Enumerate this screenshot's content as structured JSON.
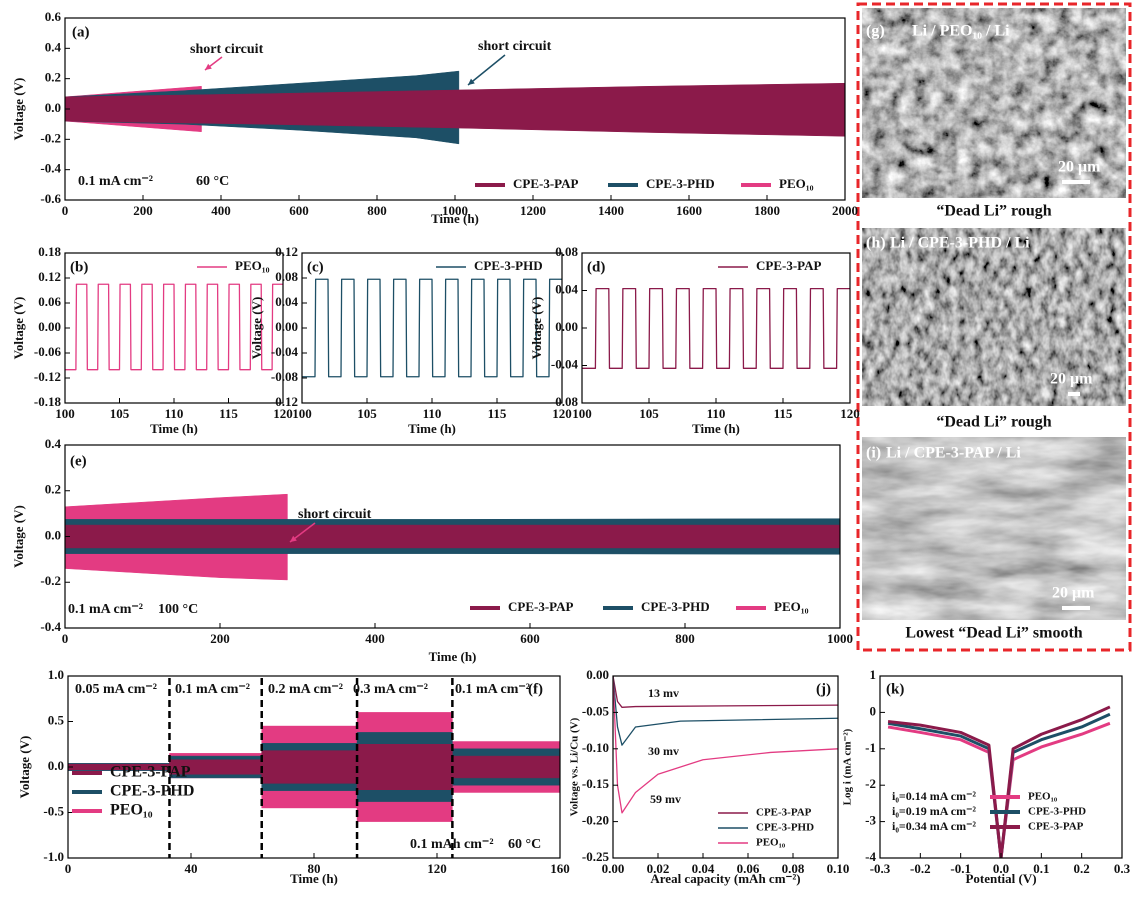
{
  "chart_data": [
    {
      "type": "band",
      "panel": "(a)",
      "xlabel": "Time (h)",
      "ylabel": "Voltage (V)",
      "xlim": [
        0,
        2000
      ],
      "ylim": [
        -0.6,
        0.6
      ],
      "xticks": [
        0,
        200,
        400,
        600,
        800,
        1000,
        1200,
        1400,
        1600,
        1800,
        2000
      ],
      "yticks": [
        -0.6,
        -0.4,
        -0.2,
        {
          "value": 0,
          "label": "0.0"
        },
        0.2,
        0.4,
        0.6
      ],
      "legend": "lower right",
      "series": [
        {
          "name": "CPE-3-PAP",
          "color": "#8b1a4a",
          "x": [
            0,
            500,
            1000,
            1500,
            2000
          ],
          "values": [
            0.08,
            0.1,
            0.125,
            0.15,
            0.17
          ],
          "lower": [
            -0.08,
            -0.1,
            -0.125,
            -0.155,
            -0.18
          ]
        },
        {
          "name": "CPE-3-PHD",
          "color": "#1d4f66",
          "x": [
            0,
            300,
            600,
            900,
            1010
          ],
          "values": [
            0.08,
            0.12,
            0.17,
            0.22,
            0.25
          ],
          "lower": [
            -0.08,
            -0.1,
            -0.14,
            -0.19,
            -0.23
          ]
        },
        {
          "name": "PEO₁₀",
          "color": "#e33b82",
          "x": [
            0,
            100,
            200,
            300,
            350
          ],
          "values": [
            0.08,
            0.1,
            0.12,
            0.14,
            0.15
          ],
          "lower": [
            -0.08,
            -0.1,
            -0.12,
            -0.14,
            -0.15
          ]
        }
      ],
      "annotations": [
        "short circuit",
        "short circuit",
        "0.1 mA cm⁻²",
        "60 °C"
      ]
    },
    {
      "type": "line",
      "panel": "(b)",
      "xlabel": "Time (h)",
      "ylabel": "Voltage (V)",
      "xlim": [
        100,
        120
      ],
      "ylim": [
        -0.18,
        0.18
      ],
      "xticks": [
        100,
        105,
        110,
        115,
        120
      ],
      "yticks": [
        -0.18,
        -0.12,
        -0.06,
        {
          "value": 0,
          "label": "0.00"
        },
        0.06,
        0.12,
        0.18
      ],
      "legend": "upper right",
      "series": [
        {
          "name": "PEO₁₀",
          "color": "#e33b82",
          "x": [
            100,
            101,
            101.05,
            102,
            102.05,
            103,
            103.05,
            104,
            104.05,
            105,
            105.05,
            106,
            106.05,
            107,
            107.05,
            108,
            108.05,
            109,
            109.05,
            110,
            110.05,
            111,
            111.05,
            112,
            112.05,
            113,
            113.05,
            114,
            114.05,
            115,
            115.05,
            116,
            116.05,
            117,
            117.05,
            118,
            118.05,
            119,
            119.05,
            120
          ],
          "values": [
            -0.1,
            -0.1,
            0.105,
            0.105,
            -0.1,
            -0.1,
            0.105,
            0.105,
            -0.1,
            -0.1,
            0.105,
            0.105,
            -0.1,
            -0.1,
            0.105,
            0.105,
            -0.1,
            -0.1,
            0.105,
            0.105,
            -0.1,
            -0.1,
            0.105,
            0.105,
            -0.1,
            -0.1,
            0.105,
            0.105,
            -0.1,
            -0.1,
            0.105,
            0.105,
            -0.1,
            -0.1,
            0.105,
            0.105,
            -0.1,
            -0.1,
            0.105,
            0.105
          ]
        }
      ],
      "annotations": []
    },
    {
      "type": "line",
      "panel": "(c)",
      "xlabel": "Time (h)",
      "ylabel": "Voltage (V)",
      "xlim": [
        100,
        120
      ],
      "ylim": [
        -0.12,
        0.12
      ],
      "xticks": [
        100,
        105,
        110,
        115,
        120
      ],
      "yticks": [
        -0.12,
        -0.08,
        -0.04,
        {
          "value": 0,
          "label": "0.00"
        },
        0.04,
        0.08,
        0.12
      ],
      "legend": "upper right",
      "series": [
        {
          "name": "CPE-3-PHD",
          "color": "#1d4f66",
          "x": [
            100,
            101,
            101.05,
            102,
            102.05,
            103,
            103.05,
            104,
            104.05,
            105,
            105.05,
            106,
            106.05,
            107,
            107.05,
            108,
            108.05,
            109,
            109.05,
            110,
            110.05,
            111,
            111.05,
            112,
            112.05,
            113,
            113.05,
            114,
            114.05,
            115,
            115.05,
            116,
            116.05,
            117,
            117.05,
            118,
            118.05,
            119,
            119.05,
            120
          ],
          "values": [
            -0.078,
            -0.078,
            0.078,
            0.078,
            -0.078,
            -0.078,
            0.078,
            0.078,
            -0.078,
            -0.078,
            0.078,
            0.078,
            -0.078,
            -0.078,
            0.078,
            0.078,
            -0.078,
            -0.078,
            0.078,
            0.078,
            -0.078,
            -0.078,
            0.078,
            0.078,
            -0.078,
            -0.078,
            0.078,
            0.078,
            -0.078,
            -0.078,
            0.078,
            0.078,
            -0.078,
            -0.078,
            0.078,
            0.078,
            -0.078,
            -0.078,
            0.078,
            0.078
          ]
        }
      ],
      "annotations": []
    },
    {
      "type": "line",
      "panel": "(d)",
      "xlabel": "Time (h)",
      "ylabel": "Voltage (V)",
      "xlim": [
        100,
        120
      ],
      "ylim": [
        -0.08,
        0.08
      ],
      "xticks": [
        100,
        105,
        110,
        115,
        120
      ],
      "yticks": [
        -0.08,
        -0.04,
        {
          "value": 0,
          "label": "0.00"
        },
        0.04,
        0.08
      ],
      "legend": "upper right",
      "series": [
        {
          "name": "CPE-3-PAP",
          "color": "#8b1a4a",
          "x": [
            100,
            101,
            101.05,
            102,
            102.05,
            103,
            103.05,
            104,
            104.05,
            105,
            105.05,
            106,
            106.05,
            107,
            107.05,
            108,
            108.05,
            109,
            109.05,
            110,
            110.05,
            111,
            111.05,
            112,
            112.05,
            113,
            113.05,
            114,
            114.05,
            115,
            115.05,
            116,
            116.05,
            117,
            117.05,
            118,
            118.05,
            119,
            119.05,
            120
          ],
          "values": [
            -0.043,
            -0.043,
            0.042,
            0.042,
            -0.043,
            -0.043,
            0.042,
            0.042,
            -0.043,
            -0.043,
            0.042,
            0.042,
            -0.043,
            -0.043,
            0.042,
            0.042,
            -0.043,
            -0.043,
            0.042,
            0.042,
            -0.043,
            -0.043,
            0.042,
            0.042,
            -0.043,
            -0.043,
            0.042,
            0.042,
            -0.043,
            -0.043,
            0.042,
            0.042,
            -0.043,
            -0.043,
            0.042,
            0.042,
            -0.043,
            -0.043,
            0.042,
            0.042
          ]
        }
      ],
      "annotations": []
    },
    {
      "type": "band",
      "panel": "(e)",
      "xlabel": "Time (h)",
      "ylabel": "Voltage (V)",
      "xlim": [
        0,
        1000
      ],
      "ylim": [
        -0.4,
        0.4
      ],
      "xticks": [
        0,
        200,
        400,
        600,
        800,
        1000
      ],
      "yticks": [
        -0.4,
        -0.2,
        {
          "value": 0,
          "label": "0.0"
        },
        0.2,
        0.4
      ],
      "legend": "lower right",
      "series": [
        {
          "name": "CPE-3-PAP",
          "color": "#8b1a4a",
          "x": [
            0,
            500,
            1000
          ],
          "values": [
            0.05,
            0.05,
            0.05
          ],
          "lower": [
            -0.05,
            -0.05,
            -0.05
          ]
        },
        {
          "name": "CPE-3-PHD",
          "color": "#1d4f66",
          "x": [
            0,
            500,
            1000
          ],
          "values": [
            0.075,
            0.075,
            0.078
          ],
          "lower": [
            -0.075,
            -0.075,
            -0.078
          ]
        },
        {
          "name": "PEO₁₀",
          "color": "#e33b82",
          "x": [
            0,
            100,
            200,
            287
          ],
          "values": [
            0.13,
            0.15,
            0.17,
            0.185
          ],
          "lower": [
            -0.14,
            -0.16,
            -0.18,
            -0.19
          ]
        }
      ],
      "annotations": [
        "short circuit",
        "0.1 mA cm⁻²",
        "100 °C"
      ]
    },
    {
      "type": "band",
      "panel": "(f)",
      "xlabel": "Time (h)",
      "ylabel": "Voltage (V)",
      "xlim": [
        0,
        160
      ],
      "ylim": [
        -1,
        1
      ],
      "xticks": [
        0,
        40,
        80,
        120,
        160
      ],
      "yticks": [
        {
          "value": -1,
          "label": "-1.0"
        },
        -0.5,
        {
          "value": 0,
          "label": "0.0"
        },
        0.5,
        {
          "value": 1,
          "label": "1.0"
        }
      ],
      "legend": "lower left",
      "dividers": [
        33,
        63,
        94,
        125
      ],
      "series": [
        {
          "name": "CPE-3-PAP",
          "color": "#8b1a4a",
          "x": [
            0,
            33,
            33,
            63,
            63,
            94,
            94,
            125,
            125,
            160
          ],
          "values": [
            0.03,
            0.03,
            0.08,
            0.08,
            0.18,
            0.18,
            0.25,
            0.25,
            0.12,
            0.12
          ],
          "lower": [
            -0.03,
            -0.03,
            -0.08,
            -0.08,
            -0.18,
            -0.18,
            -0.25,
            -0.25,
            -0.12,
            -0.12
          ]
        },
        {
          "name": "CPE-3-PHD",
          "color": "#1d4f66",
          "x": [
            0,
            33,
            33,
            63,
            63,
            94,
            94,
            125,
            125,
            160
          ],
          "values": [
            0.04,
            0.04,
            0.12,
            0.12,
            0.26,
            0.26,
            0.38,
            0.38,
            0.2,
            0.2
          ],
          "lower": [
            -0.04,
            -0.04,
            -0.12,
            -0.12,
            -0.26,
            -0.26,
            -0.38,
            -0.38,
            -0.2,
            -0.2
          ]
        },
        {
          "name": "PEO₁₀",
          "color": "#e33b82",
          "x": [
            0,
            33,
            33,
            63,
            63,
            94,
            94,
            125,
            125,
            160
          ],
          "values": [
            0.04,
            0.04,
            0.15,
            0.15,
            0.45,
            0.45,
            0.6,
            0.6,
            0.28,
            0.28
          ],
          "lower": [
            -0.04,
            -0.04,
            -0.12,
            -0.12,
            -0.45,
            -0.45,
            -0.6,
            -0.6,
            -0.28,
            -0.28
          ]
        }
      ],
      "annotations": [
        "0.05 mA cm⁻²",
        "0.1 mA cm⁻²",
        "0.2 mA cm⁻²",
        "0.3 mA cm⁻²",
        "0.1 mA cm⁻²",
        "0.1 mAh cm⁻²",
        "60 °C"
      ]
    },
    {
      "type": "line",
      "panel": "(j)",
      "xlabel": "Areal capacity (mAh cm⁻²)",
      "ylabel": "Voltage vs. Li/Cu (V)",
      "xlim": [
        0,
        0.1
      ],
      "ylim": [
        -0.25,
        0
      ],
      "xticks": [
        {
          "value": 0,
          "label": "0.00"
        },
        0.02,
        0.04,
        0.06,
        0.08,
        {
          "value": 0.1,
          "label": "0.10"
        }
      ],
      "yticks": [
        -0.25,
        {
          "value": -0.2,
          "label": "-0.20"
        },
        -0.15,
        {
          "value": -0.1,
          "label": "-0.10"
        },
        -0.05,
        {
          "value": 0,
          "label": "0.00"
        }
      ],
      "legend": "lower right",
      "series": [
        {
          "name": "CPE-3-PAP",
          "color": "#8b1a4a",
          "x": [
            0,
            0.002,
            0.004,
            0.01,
            0.05,
            0.1
          ],
          "values": [
            0,
            -0.035,
            -0.043,
            -0.042,
            -0.041,
            -0.04
          ]
        },
        {
          "name": "CPE-3-PHD",
          "color": "#1d4f66",
          "x": [
            0,
            0.002,
            0.004,
            0.01,
            0.03,
            0.1
          ],
          "values": [
            0,
            -0.07,
            -0.095,
            -0.07,
            -0.062,
            -0.058
          ]
        },
        {
          "name": "PEO₁₀",
          "color": "#e33b82",
          "x": [
            0,
            0.002,
            0.004,
            0.01,
            0.02,
            0.04,
            0.07,
            0.1
          ],
          "values": [
            0,
            -0.15,
            -0.188,
            -0.16,
            -0.135,
            -0.115,
            -0.105,
            -0.1
          ]
        }
      ],
      "annotations": [
        "13 mv",
        "30 mv",
        "59 mv"
      ]
    },
    {
      "type": "line",
      "panel": "(k)",
      "xlabel": "Potential (V)",
      "ylabel": "Log i (mA cm⁻²)",
      "xlim": [
        -0.3,
        0.3
      ],
      "ylim": [
        -4,
        1
      ],
      "xticks": [
        -0.3,
        -0.2,
        -0.1,
        {
          "value": 0,
          "label": "0.0"
        },
        0.1,
        0.2,
        0.3
      ],
      "yticks": [
        -4,
        -3,
        -2,
        -1,
        0,
        1
      ],
      "legend": "lower right",
      "series": [
        {
          "name": "PEO₁₀",
          "color": "#e33b82",
          "x": [
            -0.28,
            -0.2,
            -0.1,
            -0.03,
            0,
            0.03,
            0.1,
            0.2,
            0.27
          ],
          "values": [
            -0.4,
            -0.55,
            -0.75,
            -1.1,
            -4,
            -1.3,
            -0.95,
            -0.6,
            -0.3
          ]
        },
        {
          "name": "CPE-3-PHD",
          "color": "#1d4f66",
          "x": [
            -0.28,
            -0.2,
            -0.1,
            -0.03,
            0,
            0.03,
            0.1,
            0.2,
            0.27
          ],
          "values": [
            -0.3,
            -0.45,
            -0.65,
            -1,
            -4,
            -1.1,
            -0.75,
            -0.4,
            -0.05
          ]
        },
        {
          "name": "CPE-3-PAP",
          "color": "#8b1a4a",
          "x": [
            -0.28,
            -0.2,
            -0.1,
            -0.03,
            0,
            0.03,
            0.1,
            0.2,
            0.27
          ],
          "values": [
            -0.25,
            -0.35,
            -0.55,
            -0.9,
            -4,
            -1,
            -0.6,
            -0.2,
            0.15
          ]
        }
      ],
      "annotations": [
        "i₀=0.14 mA cm⁻²",
        "i₀=0.19 mA cm⁻²",
        "i₀=0.34 mA cm⁻²"
      ]
    }
  ],
  "images": [
    {
      "label": "(g)",
      "title": "Li / PEO₁₀ / Li",
      "scale": "20 μm",
      "caption": "“Dead Li” rough"
    },
    {
      "label": "(h)",
      "title": "Li / CPE-3-PHD / Li",
      "scale": "20 μm",
      "caption": "“Dead Li” rough"
    },
    {
      "label": "(i)",
      "title": "Li / CPE-3-PAP / Li",
      "scale": "20 μm",
      "caption": "Lowest “Dead Li” smooth"
    }
  ]
}
